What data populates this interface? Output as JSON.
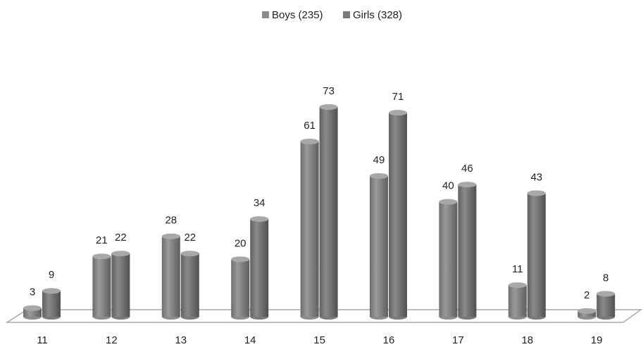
{
  "chart_data": {
    "type": "bar3d",
    "categories": [
      "11",
      "12",
      "13",
      "14",
      "15",
      "16",
      "17",
      "18",
      "19"
    ],
    "series": [
      {
        "name": "Boys (235)",
        "color": "#8c8c8c",
        "values": [
          3,
          21,
          28,
          20,
          61,
          49,
          40,
          11,
          2
        ]
      },
      {
        "name": "Girls (328)",
        "color": "#7a7a7a",
        "values": [
          9,
          22,
          22,
          34,
          73,
          71,
          46,
          43,
          8
        ]
      }
    ],
    "legend": "top"
  }
}
